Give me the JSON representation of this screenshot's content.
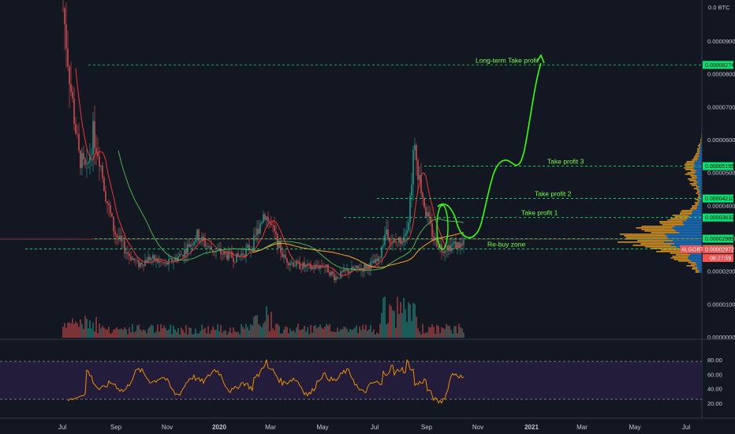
{
  "chart_data": {
    "type": "candlestick",
    "pair_label": "ALGOBTC",
    "countdown": "06:27:59",
    "price_axis": {
      "unit_label": "0.0 BTC",
      "ticks": [
        "0.00009000",
        "0.00008000",
        "0.00007000",
        "0.00006000",
        "0.00005000",
        "0.00004000",
        "0.00003000",
        "0.00002000",
        "0.00001000",
        "0.00000000"
      ]
    },
    "rsi_axis": {
      "ticks": [
        "80.00",
        "60.00",
        "40.00",
        "20.00"
      ]
    },
    "time_axis": [
      {
        "label": "Jul",
        "bold": false
      },
      {
        "label": "Sep",
        "bold": false
      },
      {
        "label": "Nov",
        "bold": false
      },
      {
        "label": "2020",
        "bold": true
      },
      {
        "label": "Mar",
        "bold": false
      },
      {
        "label": "May",
        "bold": false
      },
      {
        "label": "Jul",
        "bold": false
      },
      {
        "label": "Sep",
        "bold": false
      },
      {
        "label": "Nov",
        "bold": false
      },
      {
        "label": "2021",
        "bold": true
      },
      {
        "label": "Mar",
        "bold": false
      },
      {
        "label": "May",
        "bold": false
      },
      {
        "label": "Jul",
        "bold": false
      }
    ],
    "levels": [
      {
        "name": "Long-term Take profit",
        "price": "0.00008274",
        "color": "#00e676",
        "text_color": "#76ff4a"
      },
      {
        "name": "Take profit 3",
        "price": "0.00005195",
        "color": "#00e676",
        "text_color": "#76ff4a"
      },
      {
        "name": "Take profit 2",
        "price": "0.00004210",
        "color": "#00e676",
        "text_color": "#76ff4a"
      },
      {
        "name": "Take profit 1",
        "price": "0.00003632",
        "color": "#00e676",
        "text_color": "#76ff4a"
      },
      {
        "name": "",
        "price": "0.00002989",
        "color": "#00e676",
        "text_color": "#76ff4a"
      },
      {
        "name": "Re-buy zone",
        "price": "0.00002678",
        "color": "#00e676",
        "text_color": "#76ff4a"
      }
    ],
    "current_price": "0.00002972",
    "rsi_bands": {
      "upper": 70,
      "lower": 30
    },
    "colors": {
      "up": "#26a69a",
      "down": "#ef5350",
      "rsi": "#ff9800",
      "band": "#2a1e3d",
      "projection": "#39ff14"
    }
  }
}
